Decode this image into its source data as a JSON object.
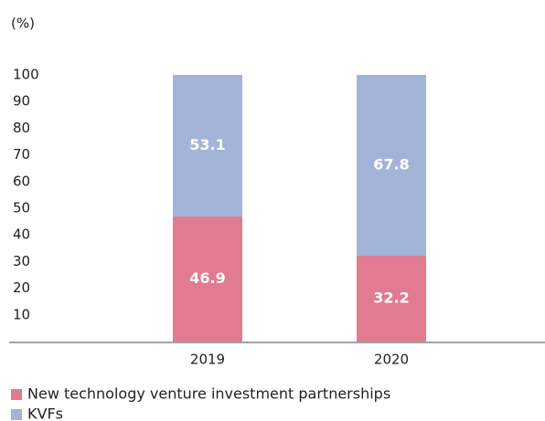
{
  "chart_data": {
    "type": "stacked_bar",
    "y_axis_label": "(%)",
    "categories": [
      "2019",
      "2020"
    ],
    "series": [
      {
        "name": "New technology venture investment partnerships",
        "color": "#e07b91",
        "values": [
          46.9,
          32.2
        ]
      },
      {
        "name": "KVFs",
        "color": "#a3b4d8",
        "values": [
          53.1,
          67.8
        ]
      }
    ],
    "ylim": [
      0,
      100
    ],
    "yticks": [
      10,
      20,
      30,
      40,
      50,
      60,
      70,
      80,
      90,
      100
    ]
  }
}
